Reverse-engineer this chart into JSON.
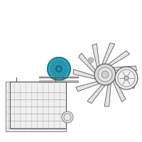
{
  "bg_color": "#ffffff",
  "highlight_color": "#2a9db5",
  "highlight_color2": "#1a7a90",
  "line_color": "#888888",
  "line_color_dark": "#555555",
  "border_color": "#cccccc"
}
